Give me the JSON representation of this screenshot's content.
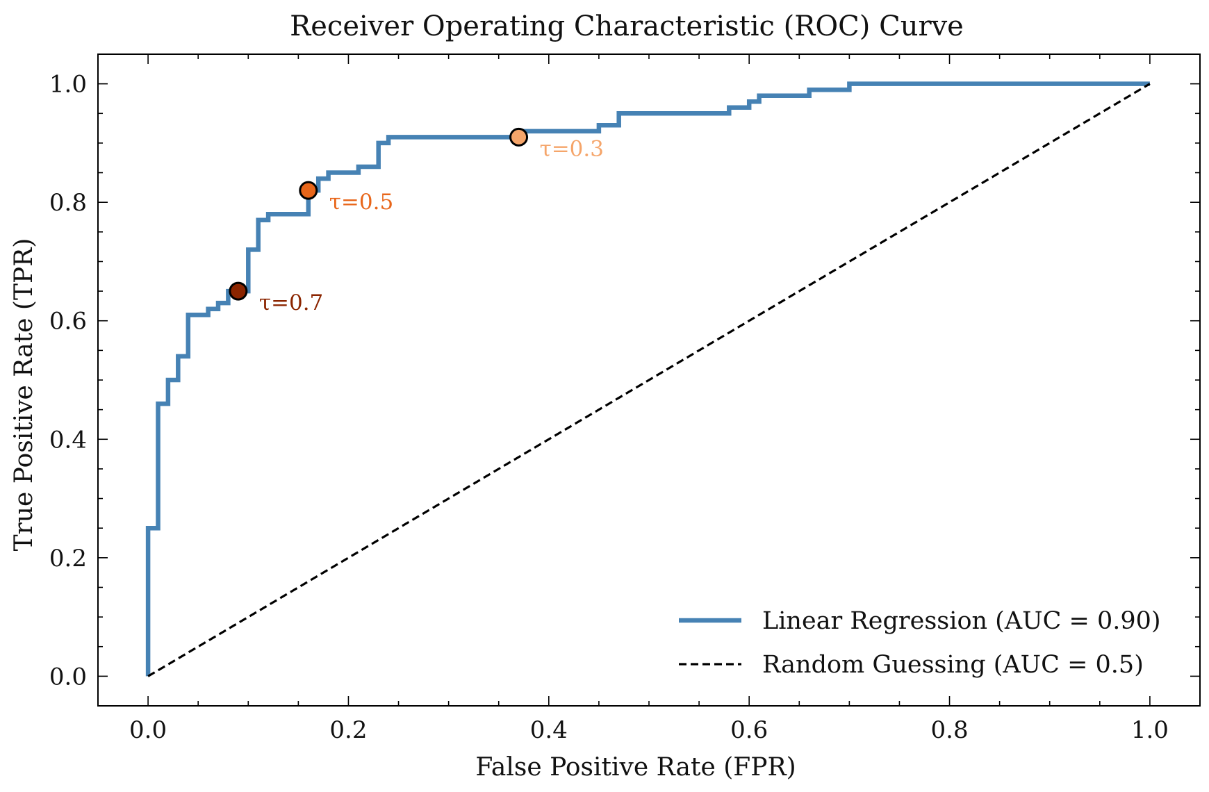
{
  "chart_data": {
    "type": "line",
    "title": "Receiver Operating Characteristic (ROC) Curve",
    "xlabel": "False Positive Rate (FPR)",
    "ylabel": "True Positive Rate (TPR)",
    "xlim": [
      -0.05,
      1.05
    ],
    "ylim": [
      -0.05,
      1.05
    ],
    "xticks": [
      0.0,
      0.2,
      0.4,
      0.6,
      0.8,
      1.0
    ],
    "xtick_labels": [
      "0.0",
      "0.2",
      "0.4",
      "0.6",
      "0.8",
      "1.0"
    ],
    "yticks": [
      0.0,
      0.2,
      0.4,
      0.6,
      0.8,
      1.0
    ],
    "ytick_labels": [
      "0.0",
      "0.2",
      "0.4",
      "0.6",
      "0.8",
      "1.0"
    ],
    "grid": false,
    "legend_position": "bottom-right",
    "series": [
      {
        "name": "Linear Regression (AUC = 0.90)",
        "style": "solid",
        "color": "#4682b4",
        "x": [
          0.0,
          0.0,
          0.01,
          0.01,
          0.02,
          0.02,
          0.03,
          0.03,
          0.04,
          0.04,
          0.06,
          0.06,
          0.07,
          0.07,
          0.08,
          0.08,
          0.09,
          0.09,
          0.1,
          0.1,
          0.11,
          0.11,
          0.12,
          0.12,
          0.16,
          0.16,
          0.17,
          0.17,
          0.18,
          0.18,
          0.21,
          0.21,
          0.23,
          0.23,
          0.24,
          0.24,
          0.37,
          0.37,
          0.45,
          0.45,
          0.47,
          0.47,
          0.58,
          0.58,
          0.6,
          0.6,
          0.61,
          0.61,
          0.66,
          0.66,
          0.7,
          0.7,
          1.0
        ],
        "y": [
          0.0,
          0.25,
          0.25,
          0.46,
          0.46,
          0.5,
          0.5,
          0.54,
          0.54,
          0.61,
          0.61,
          0.62,
          0.62,
          0.63,
          0.63,
          0.65,
          0.65,
          0.65,
          0.65,
          0.72,
          0.72,
          0.77,
          0.77,
          0.78,
          0.78,
          0.82,
          0.82,
          0.84,
          0.84,
          0.85,
          0.85,
          0.86,
          0.86,
          0.9,
          0.9,
          0.91,
          0.91,
          0.92,
          0.92,
          0.93,
          0.93,
          0.95,
          0.95,
          0.96,
          0.96,
          0.97,
          0.97,
          0.98,
          0.98,
          0.99,
          0.99,
          1.0,
          1.0
        ]
      },
      {
        "name": "Random Guessing (AUC = 0.5)",
        "style": "dashed",
        "color": "#000000",
        "x": [
          0.0,
          1.0
        ],
        "y": [
          0.0,
          1.0
        ]
      }
    ],
    "threshold_points": [
      {
        "label": "τ=0.7",
        "x": 0.09,
        "y": 0.65,
        "color": "#8b2500"
      },
      {
        "label": "τ=0.5",
        "x": 0.16,
        "y": 0.82,
        "color": "#e8661a"
      },
      {
        "label": "τ=0.3",
        "x": 0.37,
        "y": 0.91,
        "color": "#f5a56a"
      }
    ]
  }
}
